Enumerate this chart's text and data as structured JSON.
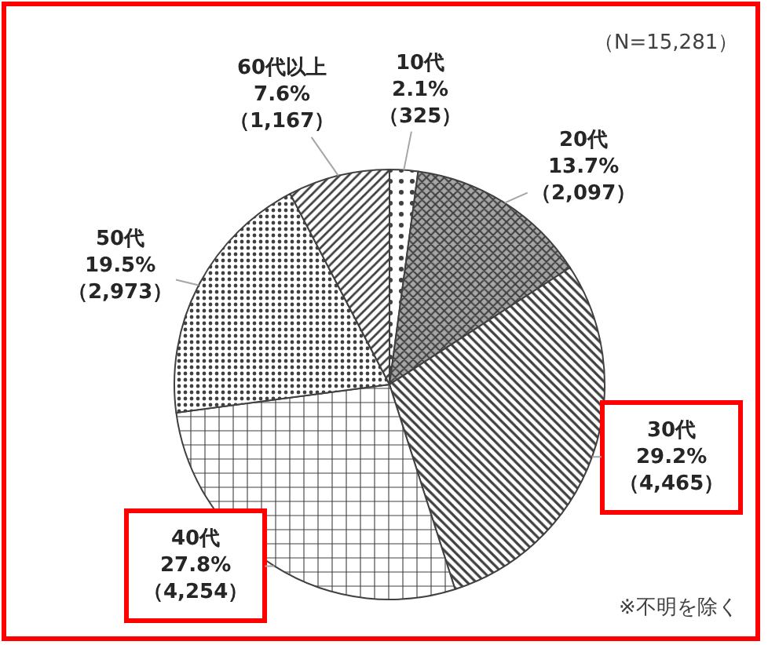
{
  "chart_data": {
    "type": "pie",
    "categories": [
      "10代",
      "20代",
      "30代",
      "40代",
      "50代",
      "60代以上"
    ],
    "values": [
      325,
      2097,
      4465,
      4254,
      2973,
      1167
    ],
    "value_labels": [
      "2.1%\n（325）",
      "13.7%\n（2,097）",
      "29.2%\n（4,465）",
      "27.8%\n（4,254）",
      "19.5%\n（2,973）",
      "7.6%\n（1,167）"
    ],
    "colors": [
      "#404040",
      "#404040",
      "#404040",
      "#404040",
      "#404040",
      "#404040"
    ],
    "annotations": [
      "（N=15,281）",
      "※不明を除く"
    ],
    "legend": false
  }
}
